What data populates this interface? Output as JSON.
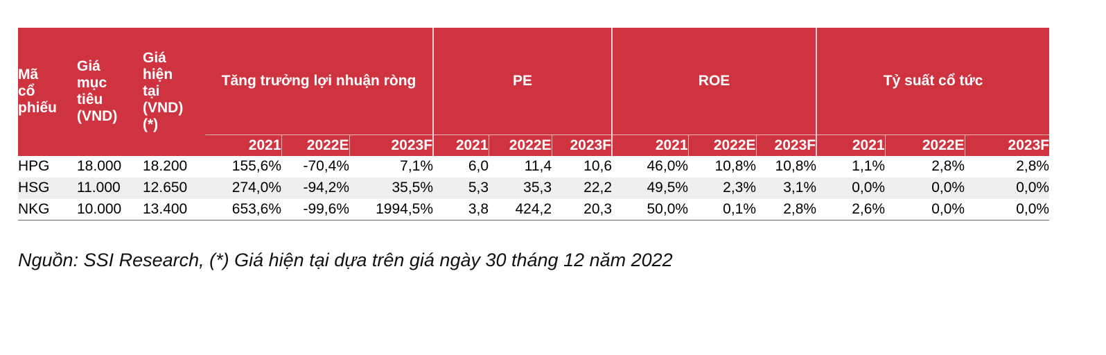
{
  "table": {
    "header": {
      "code": [
        "Mã",
        "cổ",
        "phiếu"
      ],
      "target_price": [
        "Giá",
        "mục",
        "tiêu",
        "(VND)"
      ],
      "current_price": [
        "Giá",
        "hiện",
        "tại",
        "(VND)",
        "(*)"
      ],
      "groups": [
        "Tăng trưởng lợi nhuận ròng",
        "PE",
        "ROE",
        "Tỷ suất cổ tức"
      ],
      "years": [
        "2021",
        "2022E",
        "2023F",
        "2021",
        "2022E",
        "2023F",
        "2021",
        "2022E",
        "2023F",
        "2021",
        "2022E",
        "2023F"
      ]
    },
    "rows": [
      [
        "HPG",
        "18.000",
        "18.200",
        "155,6%",
        "-70,4%",
        "7,1%",
        "6,0",
        "11,4",
        "10,6",
        "46,0%",
        "10,8%",
        "10,8%",
        "1,1%",
        "2,8%",
        "2,8%"
      ],
      [
        "HSG",
        "11.000",
        "12.650",
        "274,0%",
        "-94,2%",
        "35,5%",
        "5,3",
        "35,3",
        "22,2",
        "49,5%",
        "2,3%",
        "3,1%",
        "0,0%",
        "0,0%",
        "0,0%"
      ],
      [
        "NKG",
        "10.000",
        "13.400",
        "653,6%",
        "-99,6%",
        "1994,5%",
        "3,8",
        "424,2",
        "20,3",
        "50,0%",
        "0,1%",
        "2,8%",
        "2,6%",
        "0,0%",
        "0,0%"
      ]
    ]
  },
  "note": "Nguồn: SSI Research, (*) Giá hiện tại dựa trên giá ngày 30 tháng 12 năm 2022",
  "colors": {
    "header_bg": "#d03340",
    "header_text": "#ffffff",
    "row_shade": "#efefef"
  }
}
